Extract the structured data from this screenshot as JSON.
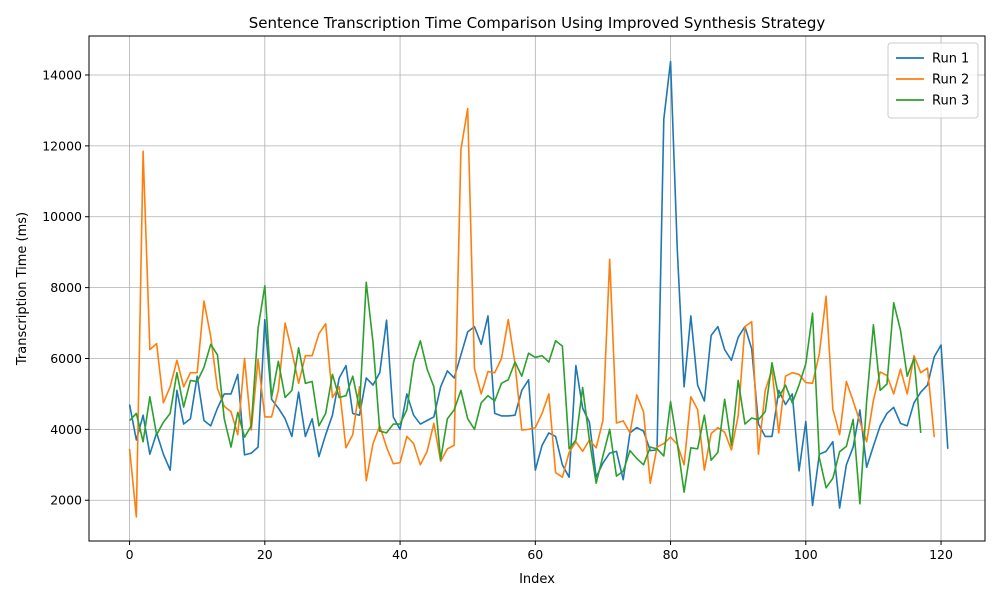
{
  "chart_data": {
    "type": "line",
    "title": "Sentence Transcription Time Comparison Using Improved Synthesis Strategy",
    "xlabel": "Index",
    "ylabel": "Transcription Time (ms)",
    "xlim": [
      -6,
      126.5
    ],
    "ylim": [
      850,
      15100
    ],
    "x_ticks": [
      0,
      20,
      40,
      60,
      80,
      100,
      120
    ],
    "y_ticks": [
      2000,
      4000,
      6000,
      8000,
      10000,
      12000,
      14000
    ],
    "grid": true,
    "legend_position": "top-right",
    "series": [
      {
        "name": "Run 1",
        "color": "#1f77b4",
        "values": [
          4700,
          3700,
          4400,
          3300,
          3900,
          3300,
          2850,
          5100,
          4150,
          4300,
          5500,
          4250,
          4100,
          4600,
          5000,
          5000,
          5550,
          3280,
          3330,
          3500,
          7100,
          4850,
          4600,
          4300,
          3800,
          5050,
          3800,
          4300,
          3230,
          3850,
          4400,
          5450,
          5800,
          4450,
          4400,
          5450,
          5250,
          5600,
          7080,
          4350,
          4000,
          5000,
          4400,
          4150,
          4250,
          4350,
          5200,
          5650,
          5450,
          6100,
          6750,
          6900,
          6400,
          7200,
          4450,
          4380,
          4380,
          4400,
          5100,
          5400,
          2850,
          3550,
          3900,
          3800,
          3000,
          2650,
          5800,
          4600,
          4200,
          2650,
          3050,
          3330,
          3380,
          2580,
          3900,
          4050,
          3950,
          3400,
          3420,
          12750,
          14380,
          9050,
          5200,
          7200,
          5250,
          4800,
          6650,
          6900,
          6250,
          5950,
          6600,
          6900,
          6270,
          4150,
          3800,
          3800,
          5100,
          4700,
          5000,
          2830,
          4220,
          1850,
          3300,
          3380,
          3650,
          1780,
          3000,
          3500,
          4550,
          2930,
          3530,
          4100,
          4450,
          4620,
          4170,
          4100,
          4750,
          5050,
          5250,
          6050,
          6380,
          3450
        ]
      },
      {
        "name": "Run 2",
        "color": "#ff7f0e",
        "values": [
          3450,
          1530,
          11850,
          6250,
          6420,
          4750,
          5200,
          5950,
          5200,
          5600,
          5600,
          7620,
          6620,
          5150,
          4650,
          4500,
          3850,
          6000,
          3980,
          5980,
          4350,
          4350,
          5100,
          7000,
          6200,
          5300,
          6080,
          6080,
          6700,
          6980,
          4900,
          5200,
          3480,
          3850,
          5200,
          2550,
          3600,
          4100,
          3500,
          3030,
          3060,
          3800,
          3600,
          3000,
          3380,
          4170,
          3100,
          3450,
          3550,
          11900,
          13050,
          5720,
          5000,
          5630,
          5600,
          6000,
          7100,
          5850,
          3980,
          4000,
          4050,
          4450,
          5000,
          2780,
          2650,
          3350,
          3650,
          3380,
          3700,
          3480,
          4250,
          8800,
          4180,
          4240,
          3900,
          4970,
          4500,
          2480,
          3500,
          3600,
          3780,
          3580,
          3000,
          4920,
          4560,
          2850,
          3880,
          4050,
          3920,
          3420,
          4380,
          6900,
          7040,
          3300,
          5100,
          5680,
          3900,
          5500,
          5600,
          5550,
          5320,
          5300,
          6130,
          7760,
          4570,
          3850,
          5350,
          4800,
          4220,
          3650,
          4820,
          5620,
          5520,
          5000,
          5700,
          5000,
          6080,
          5600,
          5730,
          3780
        ]
      },
      {
        "name": "Run 3",
        "color": "#2ca02c",
        "values": [
          4250,
          4450,
          3650,
          4920,
          3850,
          4200,
          4450,
          5600,
          4630,
          5380,
          5350,
          5750,
          6400,
          6100,
          4300,
          3500,
          4480,
          3780,
          4100,
          6850,
          8050,
          4900,
          5920,
          4900,
          5100,
          6300,
          5300,
          5350,
          4100,
          4450,
          5550,
          4900,
          4950,
          5500,
          4600,
          8150,
          6450,
          3950,
          3900,
          4150,
          4150,
          4550,
          5900,
          6500,
          5700,
          5200,
          3150,
          4300,
          4550,
          5100,
          4300,
          4000,
          4750,
          4950,
          4800,
          5300,
          5400,
          5900,
          5500,
          6150,
          6030,
          6080,
          5900,
          6500,
          6350,
          3450,
          3700,
          5180,
          3700,
          2480,
          3250,
          4000,
          2680,
          2820,
          3400,
          3180,
          3000,
          3500,
          3450,
          3250,
          4780,
          3600,
          2230,
          3480,
          3450,
          4400,
          3130,
          3350,
          4850,
          3550,
          5380,
          4150,
          4320,
          4270,
          4500,
          5880,
          4900,
          5250,
          4750,
          5250,
          5850,
          7280,
          3200,
          2350,
          2620,
          3370,
          3520,
          4280,
          1900,
          4800,
          6950,
          5100,
          5280,
          7570,
          6800,
          5500,
          6000,
          3900
        ]
      }
    ]
  }
}
